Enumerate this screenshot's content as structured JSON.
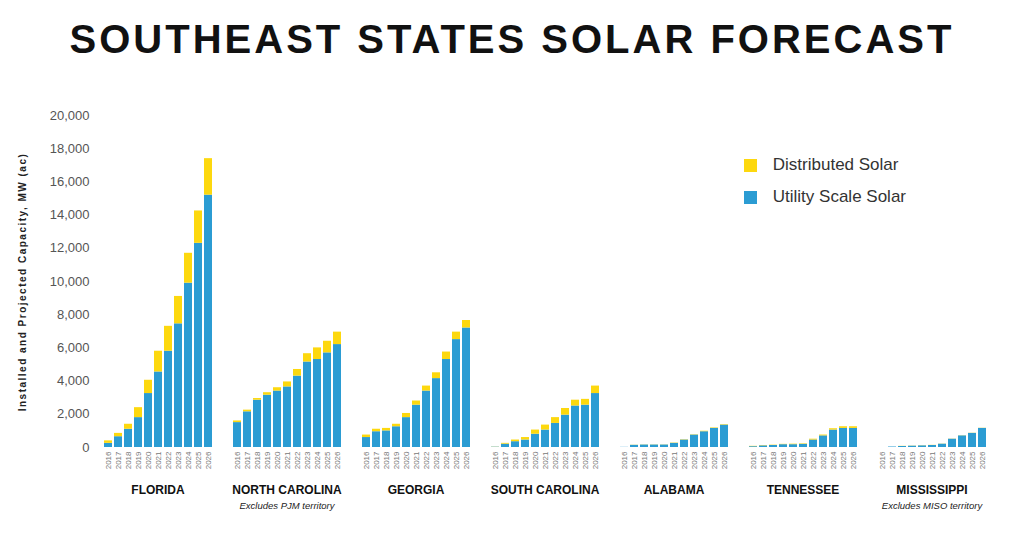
{
  "chart_data": {
    "type": "bar",
    "stacked": true,
    "title": "SOUTHEAST STATES SOLAR FORECAST",
    "y_label": "Installed and Projected Capacity, MW (ac)",
    "ylim": [
      0,
      20000
    ],
    "yticks": [
      0,
      {
        "value": 2000,
        "label": "2,000"
      },
      {
        "value": 4000,
        "label": "4,000"
      },
      {
        "value": 6000,
        "label": "6,000"
      },
      {
        "value": 8000,
        "label": "8,000"
      },
      {
        "value": 10000,
        "label": "10,000"
      },
      {
        "value": 12000,
        "label": "12,000"
      },
      {
        "value": 14000,
        "label": "14,000"
      },
      {
        "value": 16000,
        "label": "16,000"
      },
      {
        "value": 18000,
        "label": "18,000"
      },
      {
        "value": 20000,
        "label": "20,000"
      }
    ],
    "grid": false,
    "legend": "upper right",
    "categories": [
      "2016",
      "2017",
      "2018",
      "2019",
      "2020",
      "2021",
      "2022",
      "2023",
      "2024",
      "2025",
      "2026"
    ],
    "series": [
      {
        "name": "Distributed Solar",
        "color": "#fdd80e"
      },
      {
        "name": "Utility Scale Solar",
        "color": "#2b9cd3"
      }
    ],
    "groups": [
      {
        "name": "FLORIDA",
        "values": {
          "Utility Scale Solar": [
            250,
            650,
            1100,
            1800,
            3250,
            4550,
            5800,
            7450,
            9900,
            12300,
            15200
          ],
          "Distributed Solar": [
            150,
            200,
            300,
            600,
            800,
            1250,
            1500,
            1650,
            1800,
            1950,
            2200
          ]
        }
      },
      {
        "name": "NORTH CAROLINA",
        "note": "Excludes PJM territory",
        "values": {
          "Utility Scale Solar": [
            1500,
            2150,
            2850,
            3150,
            3400,
            3650,
            4300,
            5150,
            5300,
            5700,
            6200
          ],
          "Distributed Solar": [
            100,
            100,
            100,
            150,
            200,
            300,
            400,
            500,
            700,
            700,
            750
          ]
        }
      },
      {
        "name": "GEORGIA",
        "values": {
          "Utility Scale Solar": [
            600,
            950,
            1000,
            1250,
            1800,
            2550,
            3400,
            4150,
            5300,
            6500,
            7200
          ],
          "Distributed Solar": [
            150,
            150,
            150,
            150,
            250,
            250,
            300,
            350,
            450,
            450,
            450
          ]
        }
      },
      {
        "name": "SOUTH CAROLINA",
        "values": {
          "Utility Scale Solar": [
            20,
            200,
            350,
            450,
            800,
            1050,
            1450,
            1950,
            2500,
            2550,
            3250
          ],
          "Distributed Solar": [
            10,
            50,
            100,
            150,
            250,
            300,
            350,
            400,
            350,
            350,
            450
          ]
        }
      },
      {
        "name": "ALABAMA",
        "values": {
          "Utility Scale Solar": [
            10,
            130,
            150,
            150,
            150,
            250,
            450,
            750,
            950,
            1150,
            1350
          ],
          "Distributed Solar": [
            0,
            10,
            10,
            10,
            10,
            20,
            20,
            20,
            30,
            30,
            30
          ]
        }
      },
      {
        "name": "TENNESSEE",
        "values": {
          "Utility Scale Solar": [
            50,
            100,
            120,
            170,
            170,
            190,
            450,
            700,
            1050,
            1150,
            1150
          ],
          "Distributed Solar": [
            20,
            20,
            20,
            20,
            30,
            30,
            50,
            50,
            80,
            100,
            100
          ]
        }
      },
      {
        "name": "MISSISSIPPI",
        "note": "Excludes MISO territory",
        "values": {
          "Utility Scale Solar": [
            0,
            30,
            60,
            80,
            100,
            120,
            200,
            500,
            700,
            850,
            1150
          ],
          "Distributed Solar": [
            0,
            0,
            10,
            10,
            10,
            10,
            10,
            10,
            10,
            10,
            10
          ]
        }
      }
    ]
  }
}
